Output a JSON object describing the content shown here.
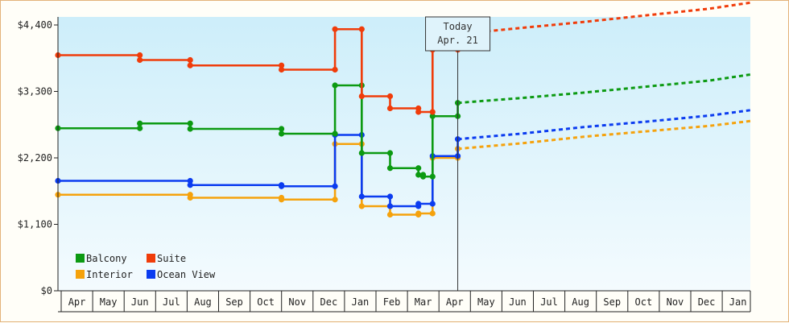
{
  "chart_data": {
    "type": "line",
    "y_ticks": [
      "$0",
      "$1,100",
      "$2,200",
      "$3,300",
      "$4,400"
    ],
    "ylim": [
      0,
      4400
    ],
    "y_step": 1100,
    "x_labels": [
      "Apr",
      "May",
      "Jun",
      "Jul",
      "Aug",
      "Sep",
      "Oct",
      "Nov",
      "Dec",
      "Jan",
      "Feb",
      "Mar",
      "Apr",
      "May",
      "Jun",
      "Jul",
      "Aug",
      "Sep",
      "Oct",
      "Nov",
      "Dec",
      "Jan"
    ],
    "today_marker": {
      "line1": "Today",
      "line2": "Apr. 21",
      "x": 12.7
    },
    "grid": false,
    "legend_position": "bottom-left",
    "colors": {
      "Suite": "#f03c0a",
      "Balcony": "#0c9a12",
      "Ocean View": "#0b3cf0",
      "Interior": "#f5a20c"
    },
    "series": [
      {
        "name": "Suite",
        "values": [
          [
            0,
            3900
          ],
          [
            2.6,
            3900
          ],
          [
            2.6,
            3820
          ],
          [
            4.2,
            3820
          ],
          [
            4.2,
            3730
          ],
          [
            7.1,
            3730
          ],
          [
            7.1,
            3660
          ],
          [
            8.8,
            3660
          ],
          [
            8.8,
            4330
          ],
          [
            9.65,
            4330
          ],
          [
            9.65,
            3220
          ],
          [
            10.55,
            3220
          ],
          [
            10.55,
            3020
          ],
          [
            11.45,
            3020
          ],
          [
            11.45,
            2960
          ],
          [
            11.9,
            2960
          ],
          [
            11.9,
            3990
          ],
          [
            12.7,
            3990
          ],
          [
            12.7,
            4250
          ]
        ],
        "projection": [
          [
            12.7,
            4250
          ],
          [
            14.7,
            4350
          ],
          [
            16.7,
            4450
          ],
          [
            18.7,
            4560
          ],
          [
            20.7,
            4670
          ],
          [
            22,
            4770
          ]
        ]
      },
      {
        "name": "Balcony",
        "values": [
          [
            0,
            2690
          ],
          [
            2.6,
            2690
          ],
          [
            2.6,
            2770
          ],
          [
            4.2,
            2770
          ],
          [
            4.2,
            2680
          ],
          [
            7.1,
            2680
          ],
          [
            7.1,
            2600
          ],
          [
            8.8,
            2600
          ],
          [
            8.8,
            3400
          ],
          [
            9.65,
            3400
          ],
          [
            9.65,
            2280
          ],
          [
            10.55,
            2280
          ],
          [
            10.55,
            2030
          ],
          [
            11.45,
            2030
          ],
          [
            11.45,
            1920
          ],
          [
            11.6,
            1920
          ],
          [
            11.6,
            1890
          ],
          [
            11.9,
            1890
          ],
          [
            11.9,
            2890
          ],
          [
            12.7,
            2890
          ],
          [
            12.7,
            3110
          ]
        ],
        "projection": [
          [
            12.7,
            3110
          ],
          [
            14.7,
            3190
          ],
          [
            16.7,
            3280
          ],
          [
            18.7,
            3380
          ],
          [
            20.7,
            3480
          ],
          [
            22,
            3580
          ]
        ]
      },
      {
        "name": "Ocean View",
        "values": [
          [
            0,
            1820
          ],
          [
            4.2,
            1820
          ],
          [
            4.2,
            1750
          ],
          [
            7.1,
            1750
          ],
          [
            7.1,
            1730
          ],
          [
            8.8,
            1730
          ],
          [
            8.8,
            2580
          ],
          [
            9.65,
            2580
          ],
          [
            9.65,
            1560
          ],
          [
            10.55,
            1560
          ],
          [
            10.55,
            1400
          ],
          [
            11.45,
            1400
          ],
          [
            11.45,
            1440
          ],
          [
            11.9,
            1440
          ],
          [
            11.9,
            2230
          ],
          [
            12.7,
            2230
          ],
          [
            12.7,
            2510
          ]
        ],
        "projection": [
          [
            12.7,
            2510
          ],
          [
            14.7,
            2600
          ],
          [
            16.7,
            2710
          ],
          [
            18.7,
            2800
          ],
          [
            20.7,
            2900
          ],
          [
            22,
            2990
          ]
        ]
      },
      {
        "name": "Interior",
        "values": [
          [
            0,
            1590
          ],
          [
            4.2,
            1590
          ],
          [
            4.2,
            1540
          ],
          [
            7.1,
            1540
          ],
          [
            7.1,
            1510
          ],
          [
            8.8,
            1510
          ],
          [
            8.8,
            2430
          ],
          [
            9.65,
            2430
          ],
          [
            9.65,
            1400
          ],
          [
            10.55,
            1400
          ],
          [
            10.55,
            1260
          ],
          [
            11.45,
            1260
          ],
          [
            11.45,
            1280
          ],
          [
            11.9,
            1280
          ],
          [
            11.9,
            2200
          ],
          [
            12.7,
            2200
          ],
          [
            12.7,
            2350
          ]
        ],
        "projection": [
          [
            12.7,
            2350
          ],
          [
            14.7,
            2440
          ],
          [
            16.7,
            2550
          ],
          [
            18.7,
            2640
          ],
          [
            20.7,
            2730
          ],
          [
            22,
            2810
          ]
        ]
      }
    ],
    "legend": [
      {
        "label": "Balcony",
        "series": "Balcony"
      },
      {
        "label": "Suite",
        "series": "Suite"
      },
      {
        "label": "Interior",
        "series": "Interior"
      },
      {
        "label": "Ocean View",
        "series": "Ocean View"
      }
    ]
  }
}
